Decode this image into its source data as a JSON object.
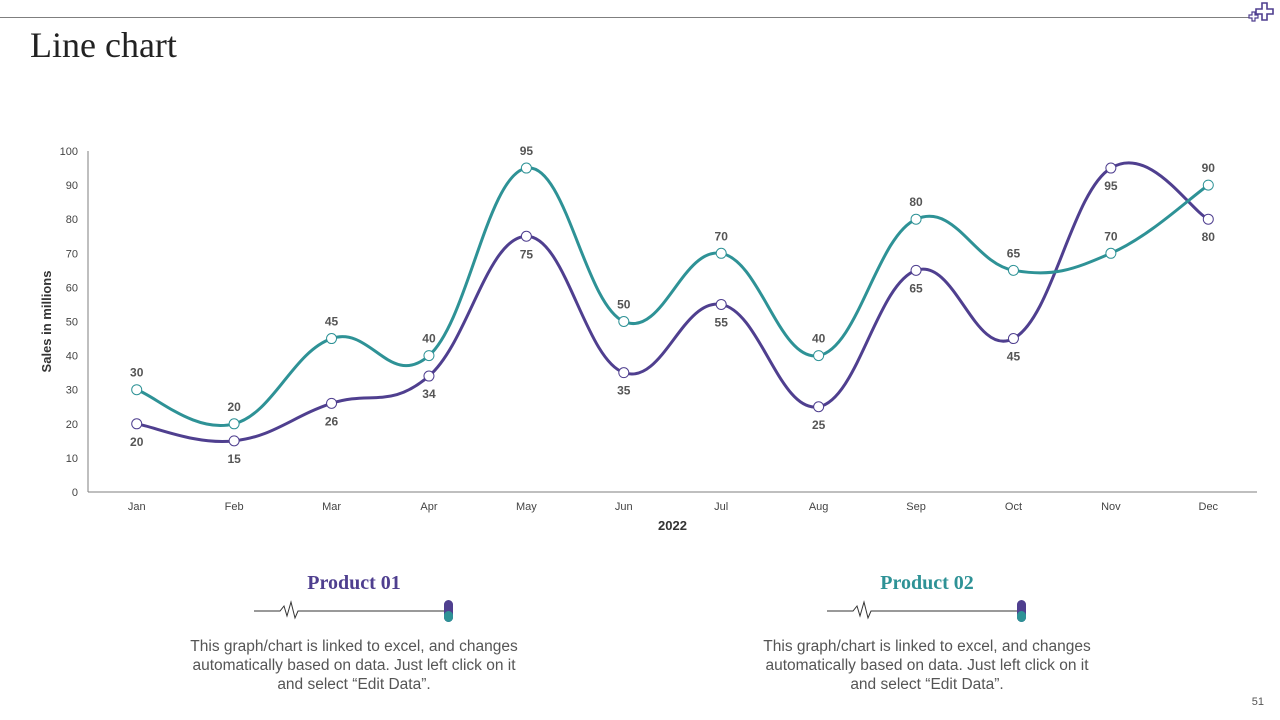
{
  "slide": {
    "title": "Line chart",
    "page_number": "51"
  },
  "colors": {
    "product01": "#4f3f8f",
    "product02": "#2e9296",
    "axis": "#7f7f7f"
  },
  "chart_data": {
    "type": "line",
    "title": "",
    "xlabel": "2022",
    "ylabel": "Sales in millions",
    "ylim": [
      0,
      100
    ],
    "yticks": [
      0,
      10,
      20,
      30,
      40,
      50,
      60,
      70,
      80,
      90,
      100
    ],
    "categories": [
      "Jan",
      "Feb",
      "Mar",
      "Apr",
      "May",
      "Jun",
      "Jul",
      "Aug",
      "Sep",
      "Oct",
      "Nov",
      "Dec"
    ],
    "smooth": true,
    "grid": false,
    "series": [
      {
        "name": "Product 01",
        "color": "#4f3f8f",
        "label_position": "below",
        "values": [
          20,
          15,
          26,
          34,
          75,
          35,
          55,
          25,
          65,
          45,
          95,
          80
        ]
      },
      {
        "name": "Product 02",
        "color": "#2e9296",
        "label_position": "above",
        "values": [
          30,
          20,
          45,
          40,
          95,
          50,
          70,
          40,
          80,
          65,
          70,
          90
        ]
      }
    ]
  },
  "products": [
    {
      "name": "Product 01",
      "description": "This graph/chart is linked to excel, and changes automatically based on data. Just left click on it and select “Edit Data”."
    },
    {
      "name": "Product 02",
      "description": "This graph/chart is linked to excel, and changes automatically based on data. Just left click on it and select “Edit Data”."
    }
  ]
}
